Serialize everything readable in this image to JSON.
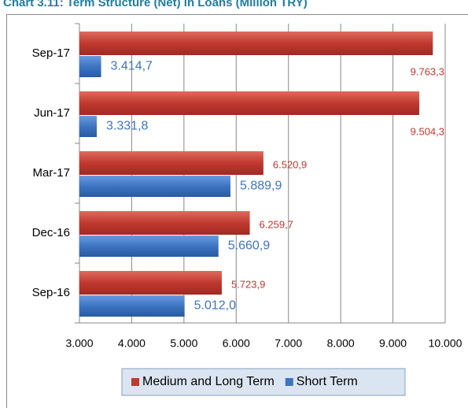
{
  "chart_data": {
    "type": "hbar",
    "title": "Chart 3.11: Term Structure (Net) in Loans (Million TRY)",
    "categories": [
      "Sep-17",
      "Jun-17",
      "Mar-17",
      "Dec-16",
      "Sep-16"
    ],
    "series": [
      {
        "name": "Medium and Long Term",
        "color": "#c0392f",
        "values": [
          9763.3,
          9504.3,
          6520.9,
          6259.7,
          5723.9
        ],
        "value_labels": [
          "9.763,3",
          "9.504,3",
          "6.520,9",
          "6.259,7",
          "5.723,9"
        ]
      },
      {
        "name": "Short Term",
        "color": "#3d74c2",
        "values": [
          3414.7,
          3331.8,
          5889.9,
          5660.9,
          5012.0
        ],
        "value_labels": [
          "3.414,7",
          "3.331,8",
          "5.889,9",
          "5.660,9",
          "5.012,0"
        ]
      }
    ],
    "xlim": [
      3000,
      10000
    ],
    "xticks": [
      {
        "value": 3000,
        "label": "3.000"
      },
      {
        "value": 4000,
        "label": "4.000"
      },
      {
        "value": 5000,
        "label": "5.000"
      },
      {
        "value": 6000,
        "label": "6.000"
      },
      {
        "value": 7000,
        "label": "7.000"
      },
      {
        "value": 8000,
        "label": "8.000"
      },
      {
        "value": 9000,
        "label": "9.000"
      },
      {
        "value": 10000,
        "label": "10.000"
      }
    ],
    "grid": true,
    "legend": "bottom"
  }
}
